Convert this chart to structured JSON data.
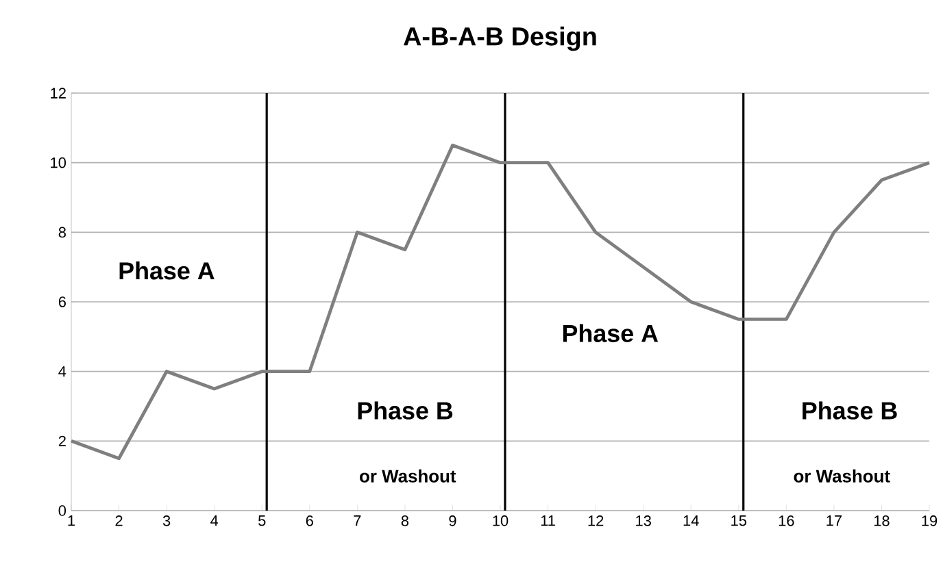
{
  "chart_data": {
    "type": "line",
    "title": "A-B-A-B Design",
    "x": [
      1,
      2,
      3,
      4,
      5,
      6,
      7,
      8,
      9,
      10,
      11,
      12,
      13,
      14,
      15,
      16,
      17,
      18,
      19
    ],
    "series": [
      {
        "color": "#7f7f7f",
        "values": [
          2,
          1.5,
          4,
          3.5,
          4,
          4,
          8,
          7.5,
          10.5,
          10,
          10,
          8,
          7,
          6,
          5.5,
          5.5,
          8,
          9.5,
          10
        ]
      }
    ],
    "xlim": [
      1,
      19
    ],
    "xticks": [
      1,
      2,
      3,
      4,
      5,
      6,
      7,
      8,
      9,
      10,
      11,
      12,
      13,
      14,
      15,
      16,
      17,
      18,
      19
    ],
    "ylim": [
      0,
      12
    ],
    "yticks": [
      0,
      2,
      4,
      6,
      8,
      10,
      12
    ],
    "grid": "y",
    "legend": false,
    "marker": "none",
    "line_style": "solid",
    "ref_lines": [
      {
        "axis": "x",
        "value": 5.1,
        "color": "#000000"
      },
      {
        "axis": "x",
        "value": 10.1,
        "color": "#000000"
      },
      {
        "axis": "x",
        "value": 15.1,
        "color": "#000000"
      }
    ],
    "annotations": [
      "Phase A",
      "Phase B",
      "or Washout",
      "Phase A",
      "Phase B",
      "or Washout"
    ]
  }
}
